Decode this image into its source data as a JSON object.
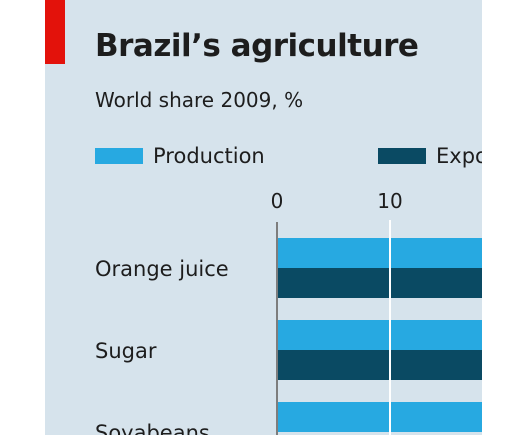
{
  "title": "Brazil’s agriculture",
  "subtitle": "World share 2009, %",
  "colors": {
    "accent": "#e3120b",
    "panel_bg": "#d6e3ec",
    "production": "#27a9e1",
    "exports": "#0a4a63",
    "gridline": "#ffffff",
    "text": "#1d1d1d"
  },
  "legend": {
    "production": "Production",
    "exports": "Expo"
  },
  "chart_data": {
    "type": "bar",
    "orientation": "horizontal",
    "title": "Brazil’s agriculture",
    "subtitle": "World share 2009, %",
    "x_ticks": [
      "0",
      "10"
    ],
    "categories": [
      "Orange juice",
      "Sugar",
      "Soyabeans"
    ],
    "series": [
      {
        "name": "Production",
        "values": [
          30,
          30,
          30
        ]
      },
      {
        "name": "Exports",
        "values": [
          30,
          30,
          null
        ]
      }
    ],
    "xlim": [
      0,
      30
    ],
    "grid": true,
    "legend_position": "top"
  }
}
